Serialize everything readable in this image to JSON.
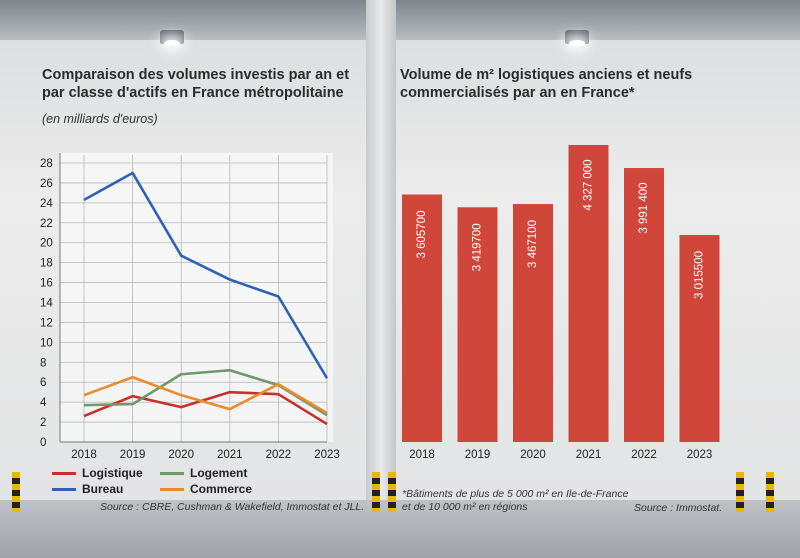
{
  "chart_data": [
    {
      "type": "line",
      "title": "Comparaison des volumes investis par an et par classe d'actifs en France métropolitaine",
      "subtitle": "(en milliards d'euros)",
      "x": [
        "2018",
        "2019",
        "2020",
        "2021",
        "2022",
        "2023"
      ],
      "ylim": [
        0,
        28
      ],
      "yticks": [
        0,
        2,
        4,
        6,
        8,
        10,
        12,
        14,
        16,
        18,
        20,
        22,
        24,
        26,
        28
      ],
      "grid": true,
      "series": [
        {
          "name": "Logistique",
          "color": "#c8312a",
          "values": [
            2.6,
            4.6,
            3.5,
            5.0,
            4.8,
            1.8
          ]
        },
        {
          "name": "Logement",
          "color": "#6c9a68",
          "values": [
            3.7,
            3.8,
            6.8,
            7.2,
            5.7,
            2.7
          ]
        },
        {
          "name": "Bureau",
          "color": "#2f62b3",
          "values": [
            24.3,
            27.0,
            18.7,
            16.3,
            14.6,
            6.4
          ]
        },
        {
          "name": "Commerce",
          "color": "#e98a2c",
          "values": [
            4.7,
            6.5,
            4.7,
            3.3,
            5.8,
            2.9
          ]
        }
      ],
      "legend": "bottom",
      "source": "Source : CBRE, Cushman & Wakefield, Immostat et JLL."
    },
    {
      "type": "bar",
      "title": "Volume de m² logistiques anciens et neufs commercialisés par an en France*",
      "categories": [
        "2018",
        "2019",
        "2020",
        "2021",
        "2022",
        "2023"
      ],
      "values": [
        3605700,
        3419700,
        3467100,
        4327000,
        3991400,
        3015500
      ],
      "value_labels": [
        "3 605700",
        "3 419700",
        "3 467100",
        "4 327 000",
        "3 991 400",
        "3 015500"
      ],
      "ylim": [
        0,
        4327000
      ],
      "color": "#d0463a",
      "footnote": [
        "*Bâtiments de plus de 5 000 m² en Ile-de-France",
        "et de 10 000 m² en régions"
      ],
      "source": "Source : Immostat."
    }
  ]
}
